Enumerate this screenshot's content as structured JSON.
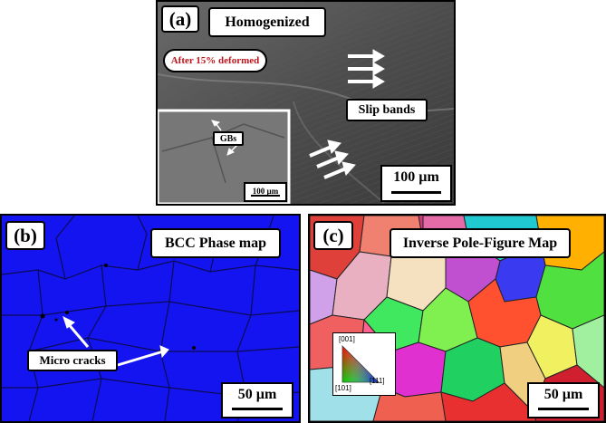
{
  "panel_a": {
    "label": "(a)",
    "title": "Homogenized",
    "note": "After 15% deformed",
    "slip_bands": "Slip bands",
    "scale_bar": "100 µm",
    "inset": {
      "gbs_label": "GBs",
      "scale_bar": "100 µm"
    },
    "colors": {
      "note_text": "#c0141c",
      "arrow": "#ffffff"
    }
  },
  "panel_b": {
    "label": "(b)",
    "title": "BCC Phase map",
    "callout": "Micro cracks",
    "scale_bar": "50 µm",
    "colors": {
      "phase": "#1414f0",
      "boundary": "#0a0a3a"
    }
  },
  "panel_c": {
    "label": "(c)",
    "title": "Inverse Pole-Figure Map",
    "scale_bar": "50 µm",
    "legend": {
      "top": "[001]",
      "bottom_left": "[101]",
      "bottom_right": "[111]"
    }
  }
}
